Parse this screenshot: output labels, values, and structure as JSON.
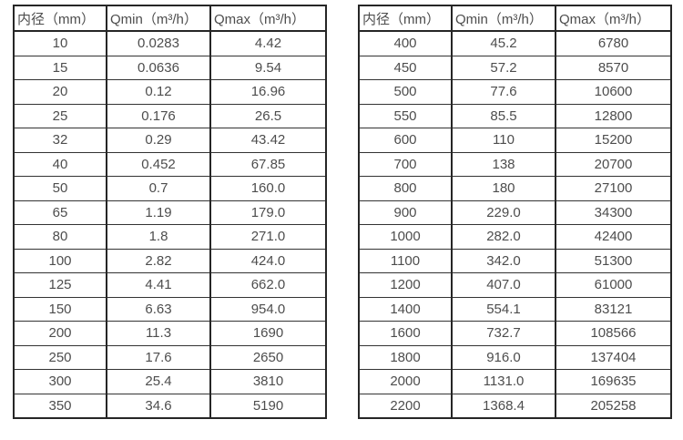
{
  "colors": {
    "background": "#ffffff",
    "border": "#262626",
    "text": "#4d4d4d"
  },
  "tables": {
    "left": {
      "name": "small-diameter-flow-table",
      "headers": [
        "内径（mm）",
        "Qmin（m³/h）",
        "Qmax（m³/h）"
      ],
      "rows": [
        [
          "10",
          "0.0283",
          "4.42"
        ],
        [
          "15",
          "0.0636",
          "9.54"
        ],
        [
          "20",
          "0.12",
          "16.96"
        ],
        [
          "25",
          "0.176",
          "26.5"
        ],
        [
          "32",
          "0.29",
          "43.42"
        ],
        [
          "40",
          "0.452",
          "67.85"
        ],
        [
          "50",
          "0.7",
          "160.0"
        ],
        [
          "65",
          "1.19",
          "179.0"
        ],
        [
          "80",
          "1.8",
          "271.0"
        ],
        [
          "100",
          "2.82",
          "424.0"
        ],
        [
          "125",
          "4.41",
          "662.0"
        ],
        [
          "150",
          "6.63",
          "954.0"
        ],
        [
          "200",
          "11.3",
          "1690"
        ],
        [
          "250",
          "17.6",
          "2650"
        ],
        [
          "300",
          "25.4",
          "3810"
        ],
        [
          "350",
          "34.6",
          "5190"
        ]
      ]
    },
    "right": {
      "name": "large-diameter-flow-table",
      "headers": [
        "内径（mm）",
        "Qmin（m³/h）",
        "Qmax（m³/h）"
      ],
      "rows": [
        [
          "400",
          "45.2",
          "6780"
        ],
        [
          "450",
          "57.2",
          "8570"
        ],
        [
          "500",
          "77.6",
          "10600"
        ],
        [
          "550",
          "85.5",
          "12800"
        ],
        [
          "600",
          "110",
          "15200"
        ],
        [
          "700",
          "138",
          "20700"
        ],
        [
          "800",
          "180",
          "27100"
        ],
        [
          "900",
          "229.0",
          "34300"
        ],
        [
          "1000",
          "282.0",
          "42400"
        ],
        [
          "1100",
          "342.0",
          "51300"
        ],
        [
          "1200",
          "407.0",
          "61000"
        ],
        [
          "1400",
          "554.1",
          "83121"
        ],
        [
          "1600",
          "732.7",
          "108566"
        ],
        [
          "1800",
          "916.0",
          "137404"
        ],
        [
          "2000",
          "1131.0",
          "169635"
        ],
        [
          "2200",
          "1368.4",
          "205258"
        ]
      ]
    }
  }
}
